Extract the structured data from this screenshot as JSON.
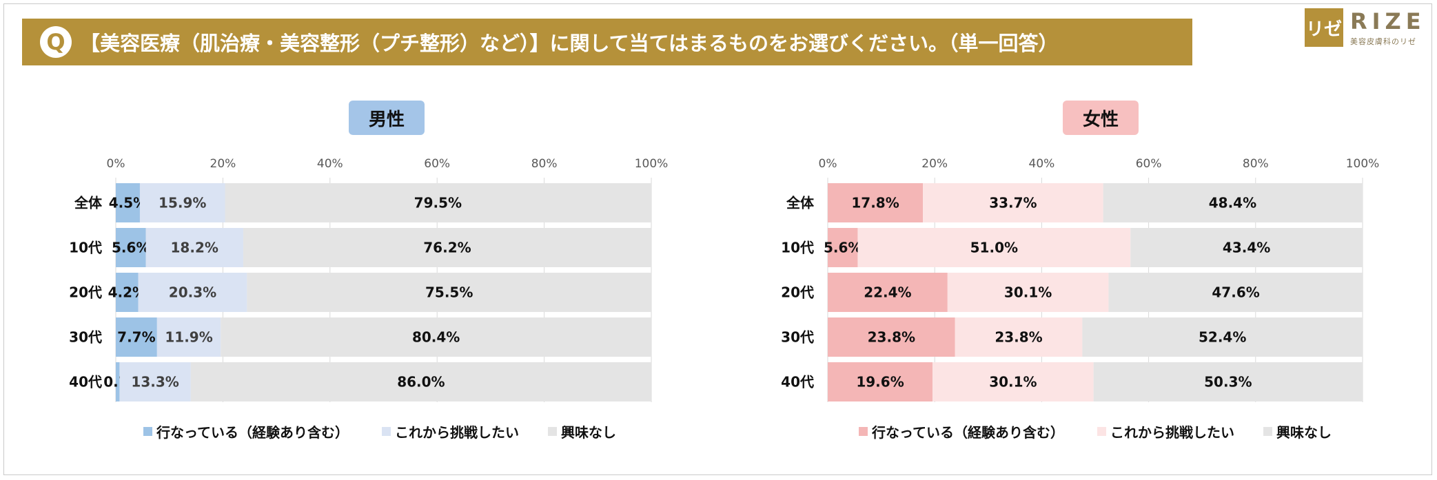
{
  "header": {
    "q_icon": "Q",
    "question": "【美容医療（肌治療・美容整形（プチ整形）など）】に関して当てはまるものをお選びください。（単一回答）",
    "logo_mark": "リゼ",
    "logo_word": "RIZE",
    "logo_sub": "美容皮膚科のリゼ"
  },
  "colors": {
    "gold": "#B5913A",
    "male_done": "#9DC3E6",
    "male_want": "#DAE3F3",
    "female_done": "#F4B6B6",
    "female_want": "#FCE4E4",
    "none": "#E4E4E4"
  },
  "chart_data": [
    {
      "type": "bar",
      "orientation": "horizontal",
      "stacked": true,
      "title": "男性",
      "categories": [
        "全体",
        "10代",
        "20代",
        "30代",
        "40代"
      ],
      "series": [
        {
          "name": "行なっている（経験あり含む）",
          "values": [
            4.5,
            5.6,
            4.2,
            7.7,
            0.7
          ]
        },
        {
          "name": "これから挑戦したい",
          "values": [
            15.9,
            18.2,
            20.3,
            11.9,
            13.3
          ]
        },
        {
          "name": "興味なし",
          "values": [
            79.5,
            76.2,
            75.5,
            80.4,
            86.0
          ]
        }
      ],
      "xlim": [
        0,
        100
      ],
      "xticks": [
        "0%",
        "20%",
        "40%",
        "60%",
        "80%",
        "100%"
      ],
      "grid": true,
      "legend": "bottom"
    },
    {
      "type": "bar",
      "orientation": "horizontal",
      "stacked": true,
      "title": "女性",
      "categories": [
        "全体",
        "10代",
        "20代",
        "30代",
        "40代"
      ],
      "series": [
        {
          "name": "行なっている（経験あり含む）",
          "values": [
            17.8,
            5.6,
            22.4,
            23.8,
            19.6
          ]
        },
        {
          "name": "これから挑戦したい",
          "values": [
            33.7,
            51.0,
            30.1,
            23.8,
            30.1
          ]
        },
        {
          "name": "興味なし",
          "values": [
            48.4,
            43.4,
            47.6,
            52.4,
            50.3
          ]
        }
      ],
      "xlim": [
        0,
        100
      ],
      "xticks": [
        "0%",
        "20%",
        "40%",
        "60%",
        "80%",
        "100%"
      ],
      "grid": true,
      "legend": "bottom"
    }
  ]
}
